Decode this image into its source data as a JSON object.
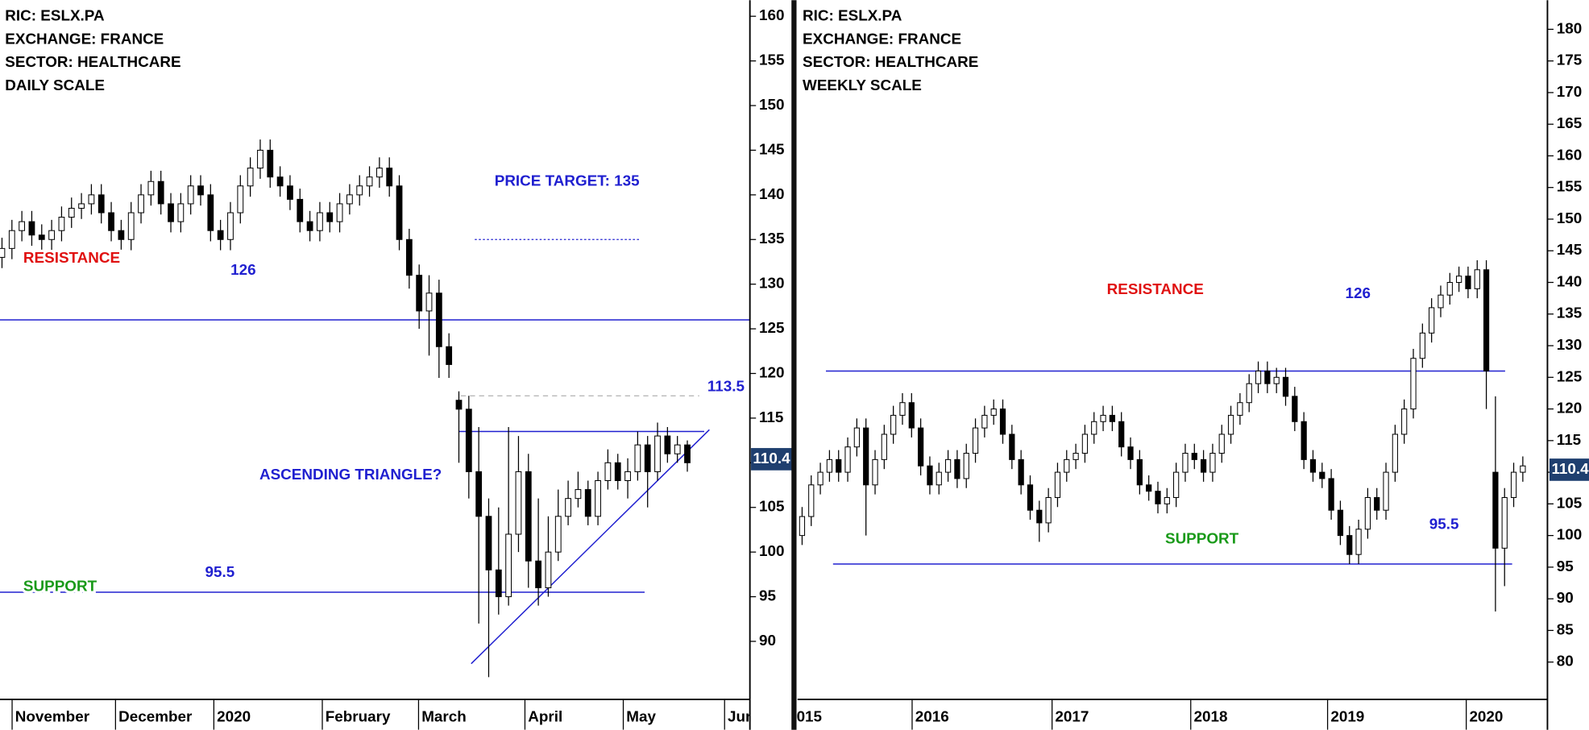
{
  "chart_data": [
    {
      "type": "candlestick",
      "info": [
        "RIC: ESLX.PA",
        "EXCHANGE: FRANCE",
        "SECTOR: HEALTHCARE",
        "DAILY SCALE"
      ],
      "open": [
        133,
        134,
        136,
        137,
        135.5,
        135,
        136,
        137.5,
        138.5,
        139,
        140,
        138,
        136,
        135,
        138,
        140,
        141.5,
        139,
        137,
        139,
        141,
        140,
        136,
        135,
        138,
        141,
        143,
        145,
        142,
        141,
        139.5,
        137,
        136,
        138,
        137,
        139,
        140,
        141,
        142,
        143,
        141,
        135,
        131,
        127,
        129,
        123,
        117,
        116,
        109,
        104,
        98,
        95,
        102,
        109,
        99,
        96,
        100,
        104,
        106,
        107,
        104,
        108,
        110,
        108,
        109,
        112,
        109,
        113,
        111,
        112
      ],
      "high": [
        135.2,
        137.2,
        138.2,
        138.2,
        136.7,
        137.2,
        138.7,
        139.7,
        140.2,
        141.2,
        141.2,
        139.2,
        137.2,
        139.2,
        141.2,
        142.7,
        142.7,
        140.2,
        140.2,
        142.2,
        142.2,
        141.2,
        137.2,
        139.2,
        142.2,
        144.2,
        146.2,
        146.2,
        143.2,
        142.2,
        140.7,
        138.2,
        139.2,
        139.2,
        140.2,
        141.2,
        142.2,
        143.2,
        144.2,
        144.2,
        142.2,
        136.2,
        132.2,
        131,
        130.5,
        124.5,
        118,
        117.5,
        114,
        106,
        105,
        114,
        113,
        111,
        106,
        104,
        107,
        108,
        109,
        108,
        109,
        111.5,
        111,
        110.5,
        113.5,
        113,
        114.5,
        114,
        113,
        112.5
      ],
      "low": [
        131.8,
        132.8,
        134.8,
        134.3,
        133.8,
        133.8,
        134.8,
        136.3,
        137.3,
        137.8,
        136.8,
        134.8,
        133.8,
        133.8,
        136.8,
        138.8,
        137.8,
        135.8,
        135.8,
        137.8,
        138.8,
        134.8,
        133.8,
        133.8,
        136.8,
        139.8,
        141.8,
        140.8,
        139.8,
        138.3,
        135.8,
        134.8,
        134.8,
        135.8,
        135.8,
        137.8,
        138.8,
        139.8,
        140.8,
        139.8,
        133.8,
        129.5,
        125,
        122,
        119.5,
        119.5,
        110,
        106,
        92,
        86,
        93,
        94,
        100,
        96,
        94,
        95,
        99,
        103,
        105,
        103,
        103,
        107,
        107,
        106,
        108,
        105,
        108,
        110,
        110,
        109
      ],
      "close": [
        134,
        136,
        137,
        135.5,
        135,
        136,
        137.5,
        138.5,
        139,
        140,
        138,
        136,
        135,
        138,
        140,
        141.5,
        139,
        137,
        139,
        141,
        140,
        136,
        135,
        138,
        141,
        143,
        145,
        142,
        141,
        139.5,
        137,
        136,
        138,
        137,
        139,
        140,
        141,
        142,
        143,
        141,
        135,
        131,
        127,
        129,
        123,
        121,
        116,
        109,
        104,
        98,
        95,
        102,
        109,
        99,
        96,
        100,
        104,
        106,
        107,
        104,
        108,
        110,
        108,
        109,
        112,
        109,
        113,
        111,
        112,
        110
      ],
      "up_color": "#ffffff",
      "down_color": "#000000",
      "xlim": [
        -0.2,
        75.3
      ],
      "xticks": [
        {
          "value": 1.02,
          "label": "November"
        },
        {
          "value": 11.43,
          "label": "December"
        },
        {
          "value": 21.33,
          "label": "2020"
        },
        {
          "value": 32.25,
          "label": "February"
        },
        {
          "value": 41.94,
          "label": "March"
        },
        {
          "value": 52.65,
          "label": "April"
        },
        {
          "value": 62.55,
          "label": "May"
        },
        {
          "value": 72.75,
          "label": "Jun"
        }
      ],
      "ylim": [
        83.5,
        161.8
      ],
      "yticks": [
        90,
        95,
        100,
        105,
        110,
        115,
        120,
        125,
        130,
        135,
        140,
        145,
        150,
        155,
        160
      ],
      "last_price": 110.4,
      "levels": [
        {
          "value": 126,
          "x": [
            -0.2,
            75.3
          ],
          "color": "#2020d0"
        },
        {
          "value": 95.5,
          "x": [
            -0.2,
            64.7
          ],
          "color": "#2020d0"
        },
        {
          "value": 113.5,
          "x": [
            46.0,
            70.7
          ],
          "color": "#2020d0"
        }
      ],
      "guides": [
        {
          "value": 135,
          "x": [
            47.6,
            64.3
          ],
          "color": "#2020d0",
          "style": "dotted"
        },
        {
          "value": 117.5,
          "x": [
            46.2,
            70.2
          ],
          "color": "#b0b0b0",
          "style": "dashed"
        }
      ],
      "trendline": {
        "x": [
          47.24,
          71.22
        ],
        "y": [
          87.5,
          113.7
        ],
        "color": "#2020d0"
      },
      "annotations": [
        {
          "text": "RESISTANCE",
          "color": "#e01010"
        },
        {
          "text": "SUPPORT",
          "color": "#1a9a1a"
        },
        {
          "text": "PRICE TARGET: 135",
          "color": "#2020d0"
        },
        {
          "text": "ASCENDING TRIANGLE?",
          "color": "#2020d0"
        }
      ]
    },
    {
      "type": "candlestick",
      "info": [
        "RIC: ESLX.PA",
        "EXCHANGE: FRANCE",
        "SECTOR: HEALTHCARE",
        "WEEKLY SCALE"
      ],
      "open": [
        100,
        103,
        108,
        110,
        112,
        110,
        114,
        117,
        108,
        112,
        116,
        119,
        121,
        117,
        111,
        108,
        110,
        112,
        109,
        113,
        117,
        119,
        120,
        116,
        112,
        108,
        104,
        102,
        106,
        110,
        112,
        113,
        116,
        118,
        119,
        118,
        114,
        112,
        108,
        107,
        105,
        106,
        110,
        113,
        112,
        110,
        113,
        116,
        119,
        121,
        124,
        126,
        124,
        125,
        122,
        118,
        112,
        110,
        109,
        104,
        100,
        97,
        101,
        106,
        104,
        110,
        116,
        120,
        128,
        132,
        136,
        138,
        140,
        141,
        139,
        142,
        110,
        98,
        106,
        110
      ],
      "high": [
        104.5,
        109.5,
        111.5,
        113.5,
        113.5,
        115.5,
        118.5,
        118.5,
        113.5,
        117.5,
        120.5,
        122.5,
        122.5,
        118.5,
        112.5,
        111.5,
        113.5,
        113.5,
        114.5,
        118.5,
        120.5,
        121.5,
        121.5,
        117.5,
        113.5,
        109.5,
        105.5,
        107.5,
        111.5,
        113.5,
        114.5,
        117.5,
        119.5,
        120.5,
        120.5,
        119.5,
        115.5,
        113.5,
        109.5,
        108.5,
        107.5,
        111.5,
        114.5,
        114.5,
        113.5,
        114.5,
        117.5,
        120.5,
        122.5,
        125.5,
        127.5,
        127.5,
        126.5,
        126.5,
        123.5,
        119.5,
        113.5,
        111.5,
        110.5,
        105.5,
        101.5,
        102.5,
        107.5,
        107.5,
        111.5,
        117.5,
        121.5,
        129.5,
        133.5,
        137.5,
        139.5,
        141.5,
        142.5,
        142.5,
        143.5,
        143.5,
        122,
        107.5,
        111.5,
        112.5
      ],
      "low": [
        98.5,
        101.5,
        106.5,
        108.5,
        108.5,
        108.5,
        112.5,
        100,
        106.5,
        110.5,
        114.5,
        117.5,
        115.5,
        109.5,
        106.5,
        106.5,
        108.5,
        107.5,
        107.5,
        111.5,
        115.5,
        117.5,
        114.5,
        110.5,
        106.5,
        102.5,
        99,
        100.5,
        104.5,
        108.5,
        110.5,
        111.5,
        114.5,
        116.5,
        116.5,
        112.5,
        110.5,
        106.5,
        105.5,
        103.5,
        103.5,
        104.5,
        108.5,
        110.5,
        108.5,
        108.5,
        111.5,
        114.5,
        117.5,
        119.5,
        122.5,
        122.5,
        122.5,
        120.5,
        116.5,
        110.5,
        108.5,
        107.5,
        102.5,
        98.5,
        95.5,
        95.5,
        99.5,
        102.5,
        102.5,
        108.5,
        114.5,
        118.5,
        126.5,
        130.5,
        134.5,
        136.5,
        138.5,
        137.5,
        137.5,
        120,
        88,
        92,
        104.5,
        108.5
      ],
      "close": [
        103,
        108,
        110,
        112,
        110,
        114,
        117,
        108,
        112,
        116,
        119,
        121,
        117,
        111,
        108,
        110,
        112,
        109,
        113,
        117,
        119,
        120,
        116,
        112,
        108,
        104,
        102,
        106,
        110,
        112,
        113,
        116,
        118,
        119,
        118,
        114,
        112,
        108,
        107,
        105,
        106,
        110,
        113,
        112,
        110,
        113,
        116,
        119,
        121,
        124,
        126,
        124,
        125,
        122,
        118,
        112,
        110,
        109,
        104,
        100,
        97,
        101,
        106,
        104,
        110,
        116,
        120,
        128,
        132,
        136,
        138,
        140,
        141,
        139,
        142,
        126,
        98,
        106,
        110,
        111
      ],
      "up_color": "#ffffff",
      "down_color": "#000000",
      "xlim": [
        -0.5,
        81.7
      ],
      "xticks": [
        {
          "value": -0.94,
          "label": "015"
        },
        {
          "value": 12.06,
          "label": "2016"
        },
        {
          "value": 27.4,
          "label": "2017"
        },
        {
          "value": 42.6,
          "label": "2018"
        },
        {
          "value": 57.6,
          "label": "2019"
        },
        {
          "value": 72.8,
          "label": "2020"
        }
      ],
      "ylim": [
        74.1,
        184.6
      ],
      "yticks": [
        80,
        85,
        90,
        95,
        100,
        105,
        110,
        115,
        120,
        125,
        130,
        135,
        140,
        145,
        150,
        155,
        160,
        165,
        170,
        175,
        180
      ],
      "last_price": 110.4,
      "levels": [
        {
          "value": 126,
          "x": [
            2.61,
            77.06
          ],
          "color": "#2020d0"
        },
        {
          "value": 95.5,
          "x": [
            3.39,
            77.83
          ],
          "color": "#2020d0"
        }
      ],
      "guides": [],
      "annotations": [
        {
          "text": "RESISTANCE",
          "color": "#e01010"
        },
        {
          "text": "SUPPORT",
          "color": "#1a9a1a"
        }
      ]
    }
  ]
}
